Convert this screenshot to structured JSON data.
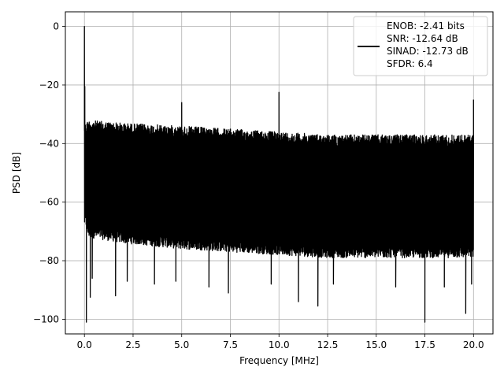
{
  "chart_data": {
    "type": "line",
    "xlabel": "Frequency [MHz]",
    "ylabel": "PSD [dB]",
    "xlim": [
      -0.98,
      21.0
    ],
    "ylim": [
      -105.0,
      5.0
    ],
    "x_ticks": [
      0.0,
      2.5,
      5.0,
      7.5,
      10.0,
      12.5,
      15.0,
      17.5,
      20.0
    ],
    "x_tick_labels": [
      "0.0",
      "2.5",
      "5.0",
      "7.5",
      "10.0",
      "12.5",
      "15.0",
      "17.5",
      "20.0"
    ],
    "y_ticks": [
      0,
      -20,
      -40,
      -60,
      -80,
      -100
    ],
    "y_tick_labels": [
      "0",
      "−20",
      "−40",
      "−60",
      "−80",
      "−100"
    ],
    "grid": true,
    "legend_position": "top-right",
    "series": [
      {
        "color": "#000000",
        "noise_ceiling": {
          "x": [
            0.05,
            0.2,
            2.0,
            5.0,
            7.5,
            10.0,
            12.5,
            15.0,
            17.5,
            20.0
          ],
          "y": [
            -33,
            -32,
            -33,
            -34,
            -35,
            -36,
            -37,
            -37,
            -37,
            -37
          ]
        },
        "noise_floor": {
          "x": [
            0.05,
            0.2,
            2.0,
            5.0,
            7.5,
            10.0,
            12.5,
            15.0,
            17.5,
            20.0
          ],
          "y": [
            -68,
            -72,
            -74,
            -76,
            -77,
            -78,
            -79,
            -79,
            -79,
            -79
          ]
        },
        "peaks": [
          {
            "x": 0.0,
            "y": 0.0
          },
          {
            "x": 0.02,
            "y": -20.5
          },
          {
            "x": 5.0,
            "y": -26.0
          },
          {
            "x": 10.0,
            "y": -22.5
          },
          {
            "x": 20.0,
            "y": -25.0
          }
        ],
        "dips": [
          {
            "x": 0.1,
            "y": -101.0
          },
          {
            "x": 0.3,
            "y": -92.5
          },
          {
            "x": 0.4,
            "y": -86.0
          },
          {
            "x": 1.6,
            "y": -92.0
          },
          {
            "x": 2.2,
            "y": -87.0
          },
          {
            "x": 3.6,
            "y": -88.0
          },
          {
            "x": 4.7,
            "y": -87.0
          },
          {
            "x": 6.4,
            "y": -89.0
          },
          {
            "x": 7.4,
            "y": -91.0
          },
          {
            "x": 9.6,
            "y": -88.0
          },
          {
            "x": 11.0,
            "y": -94.0
          },
          {
            "x": 12.0,
            "y": -95.5
          },
          {
            "x": 12.8,
            "y": -88.0
          },
          {
            "x": 16.0,
            "y": -89.0
          },
          {
            "x": 17.5,
            "y": -101.0
          },
          {
            "x": 18.5,
            "y": -89.0
          },
          {
            "x": 19.6,
            "y": -98.0
          },
          {
            "x": 19.9,
            "y": -88.0
          }
        ]
      }
    ],
    "legend_entries": [
      "ENOB: -2.41 bits",
      "SNR: -12.64 dB",
      "SINAD: -12.73 dB",
      "SFDR: 6.4"
    ]
  }
}
